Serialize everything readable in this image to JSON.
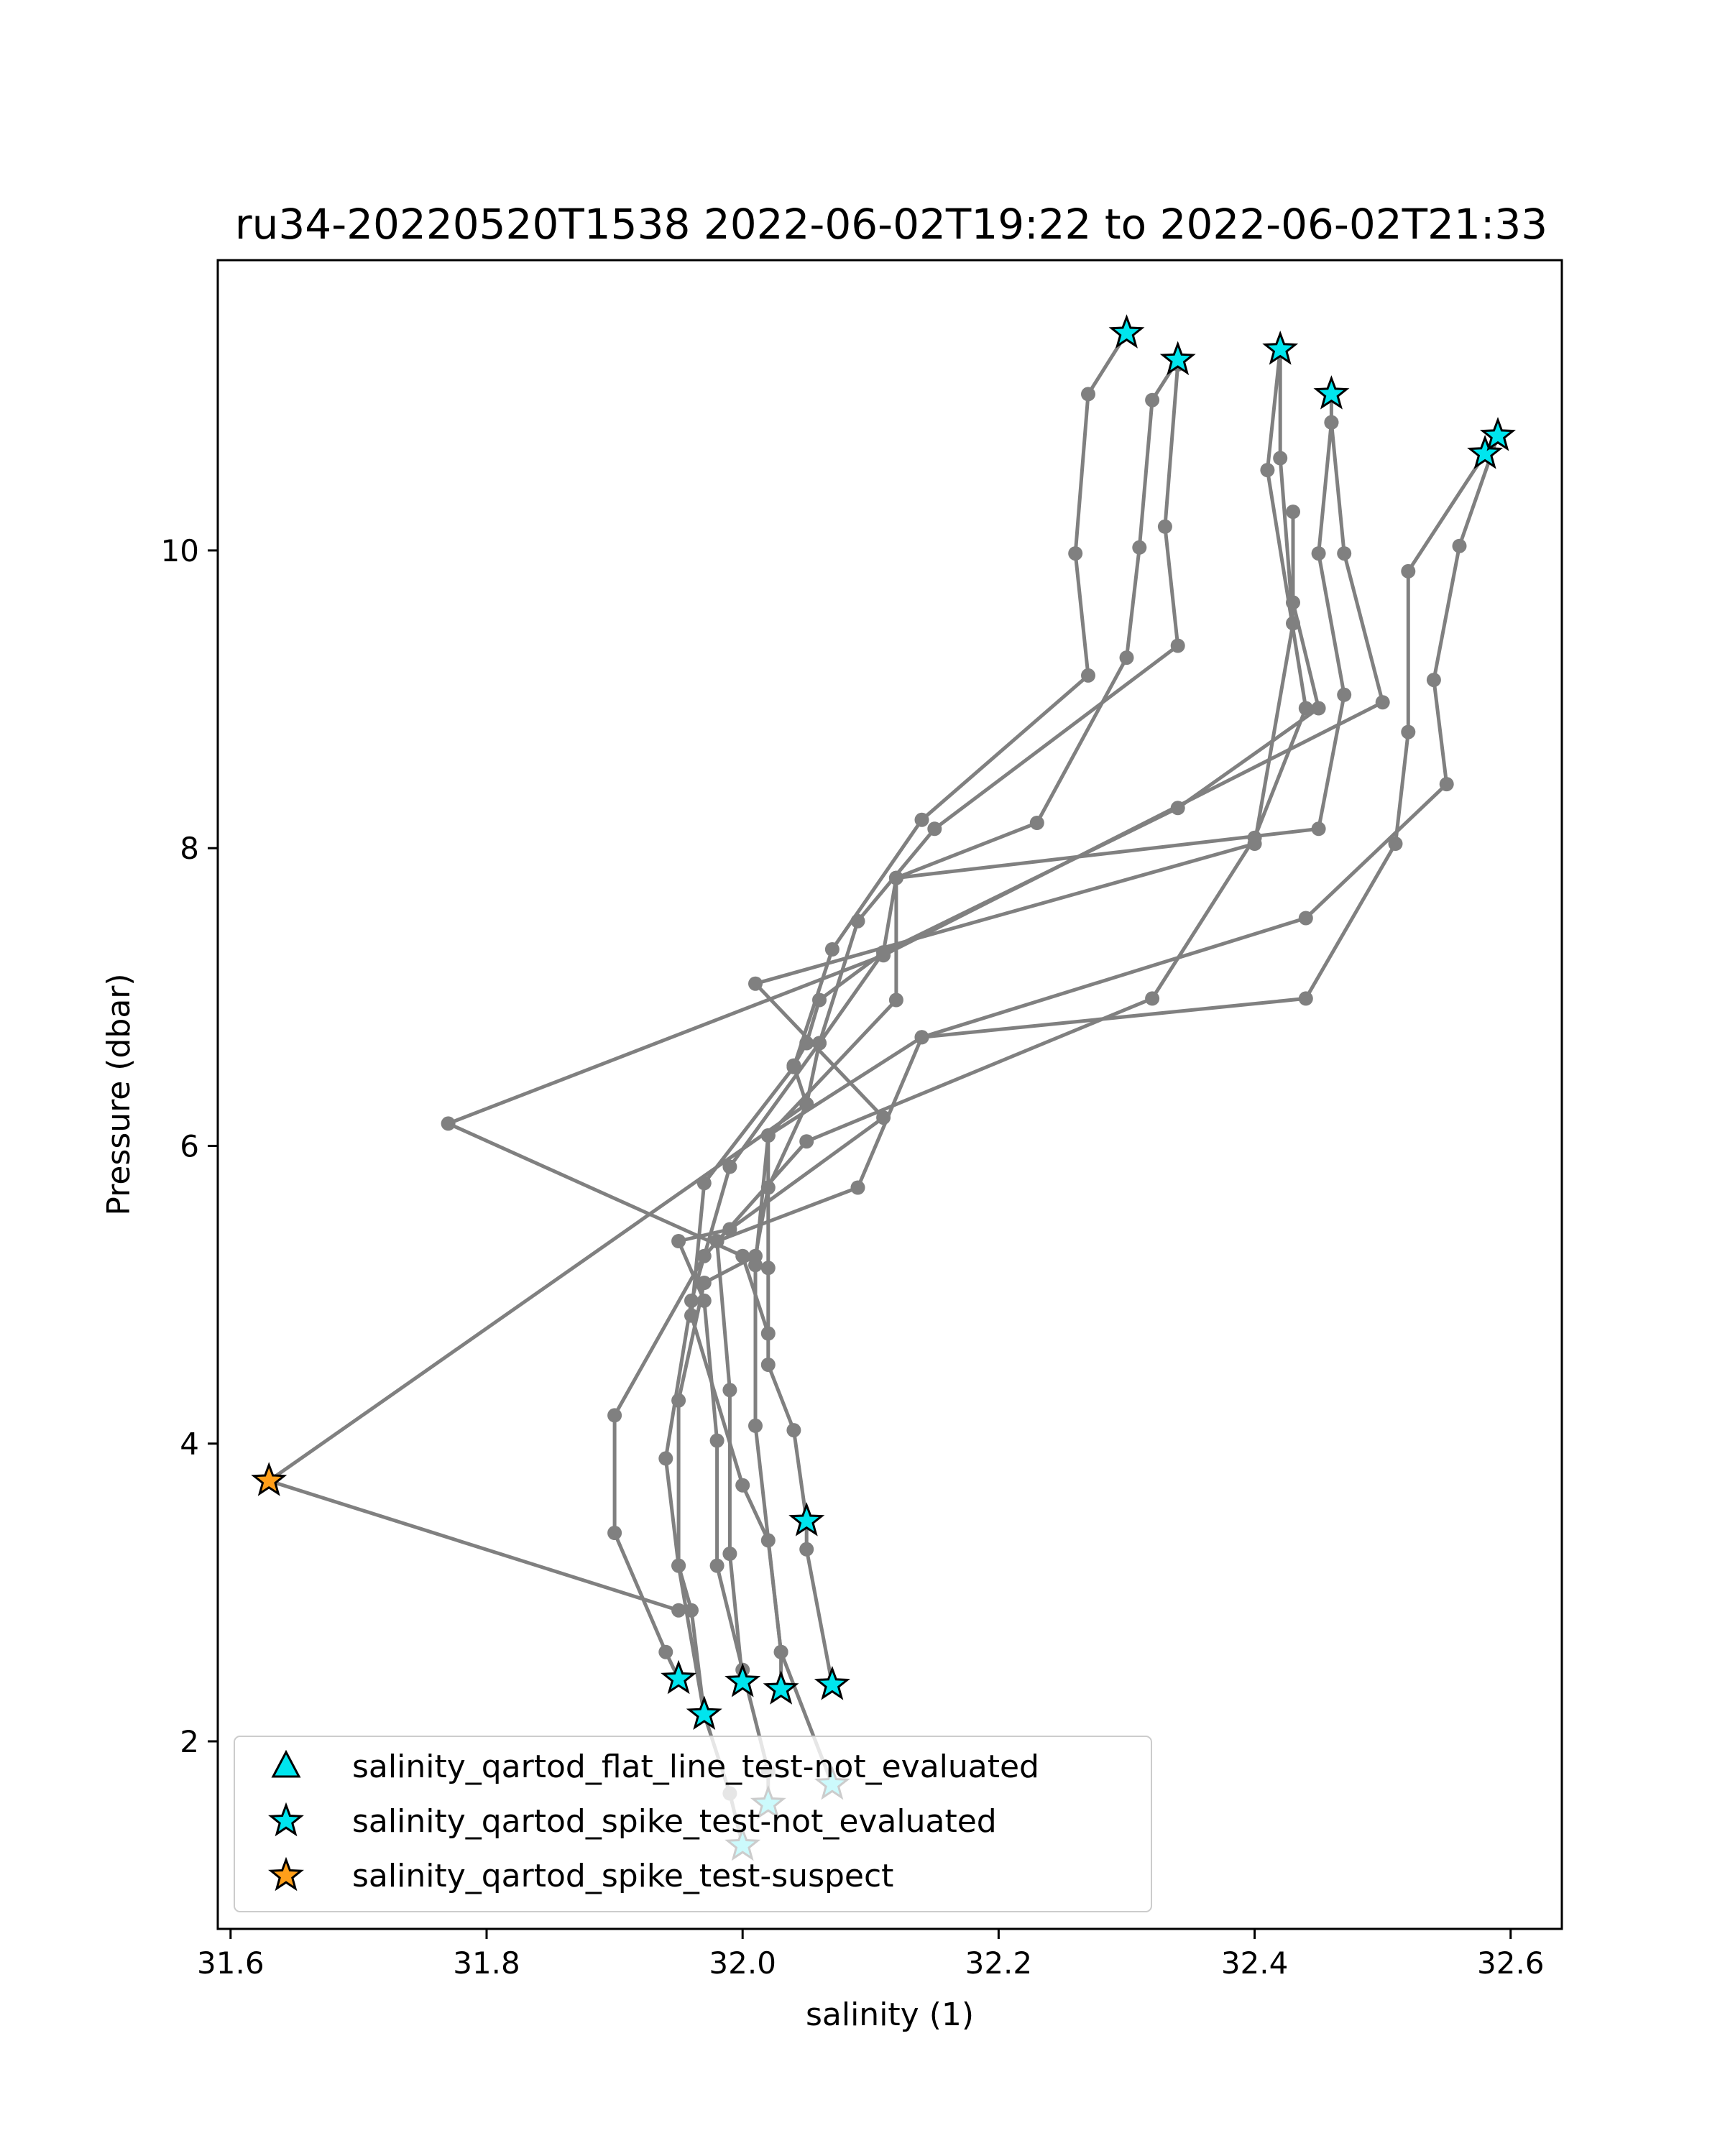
{
  "chart_data": {
    "type": "scatter",
    "title": "ru34-20220520T1538 2022-06-02T19:22 to 2022-06-02T21:33",
    "xlabel": "salinity (1)",
    "ylabel": "Pressure (dbar)",
    "xlim": [
      31.59,
      32.64
    ],
    "ylim": [
      11.95,
      0.74
    ],
    "y_inverted": true,
    "grid": false,
    "legend_position": "lower-left",
    "x_ticks": [
      31.6,
      31.8,
      32.0,
      32.2,
      32.4,
      32.6
    ],
    "x_tick_labels": [
      "31.6",
      "31.8",
      "32.0",
      "32.2",
      "32.4",
      "32.6"
    ],
    "y_ticks": [
      2,
      4,
      6,
      8,
      10
    ],
    "y_tick_labels": [
      "2",
      "4",
      "6",
      "8",
      "10"
    ],
    "colors": {
      "profile_line": "#808080",
      "not_evaluated": "#00e5ee",
      "suspect": "#ff9f1a",
      "marker_edge": "#000000"
    },
    "profiles": [
      [
        [
          32.0,
          1.3
        ],
        [
          31.99,
          1.65
        ],
        [
          31.97,
          2.18
        ],
        [
          31.96,
          2.88
        ],
        [
          31.95,
          3.18
        ],
        [
          31.95,
          4.29
        ],
        [
          31.97,
          5.08
        ],
        [
          32.01,
          5.26
        ],
        [
          32.02,
          5.72
        ],
        [
          32.05,
          6.28
        ],
        [
          32.06,
          6.69
        ],
        [
          32.11,
          7.3
        ],
        [
          32.12,
          7.8
        ],
        [
          32.23,
          8.17
        ],
        [
          32.3,
          9.28
        ],
        [
          32.31,
          10.02
        ],
        [
          32.32,
          11.01
        ],
        [
          32.34,
          11.28
        ]
      ],
      [
        [
          32.02,
          1.58
        ],
        [
          32.02,
          1.8
        ],
        [
          32.0,
          2.48
        ],
        [
          31.98,
          3.18
        ],
        [
          31.98,
          4.02
        ],
        [
          31.97,
          4.96
        ],
        [
          31.95,
          5.36
        ],
        [
          31.99,
          5.44
        ],
        [
          32.11,
          6.19
        ],
        [
          32.01,
          7.09
        ],
        [
          32.4,
          8.03
        ],
        [
          32.43,
          9.51
        ],
        [
          32.42,
          10.62
        ],
        [
          32.42,
          11.35
        ]
      ],
      [
        [
          32.07,
          1.71
        ],
        [
          32.03,
          2.6
        ],
        [
          32.02,
          3.35
        ],
        [
          32.0,
          3.72
        ],
        [
          31.96,
          4.86
        ],
        [
          31.97,
          5.75
        ],
        [
          32.04,
          6.53
        ],
        [
          32.07,
          7.32
        ],
        [
          32.14,
          8.19
        ],
        [
          32.27,
          9.16
        ],
        [
          32.26,
          9.98
        ],
        [
          32.27,
          11.05
        ],
        [
          32.3,
          11.46
        ]
      ],
      [
        [
          31.97,
          2.18
        ],
        [
          31.95,
          3.18
        ],
        [
          31.94,
          3.9
        ],
        [
          31.96,
          4.96
        ],
        [
          31.99,
          5.86
        ],
        [
          32.06,
          6.69
        ],
        [
          32.09,
          7.51
        ],
        [
          32.15,
          8.13
        ],
        [
          32.34,
          9.36
        ],
        [
          32.33,
          10.16
        ],
        [
          32.34,
          11.25
        ]
      ],
      [
        [
          31.95,
          2.42
        ],
        [
          31.94,
          2.6
        ],
        [
          31.9,
          3.4
        ],
        [
          31.9,
          4.19
        ],
        [
          31.97,
          5.26
        ],
        [
          32.05,
          6.03
        ],
        [
          32.32,
          6.99
        ],
        [
          32.4,
          8.07
        ],
        [
          32.44,
          8.94
        ],
        [
          32.41,
          10.54
        ],
        [
          32.42,
          11.35
        ]
      ],
      [
        [
          32.0,
          2.4
        ],
        [
          31.99,
          3.26
        ],
        [
          31.99,
          4.36
        ],
        [
          31.98,
          5.36
        ],
        [
          32.09,
          5.72
        ],
        [
          32.14,
          6.73
        ],
        [
          32.44,
          6.99
        ],
        [
          32.51,
          8.03
        ],
        [
          32.52,
          8.78
        ],
        [
          32.52,
          9.86
        ],
        [
          32.58,
          10.65
        ]
      ],
      [
        [
          32.03,
          2.35
        ],
        [
          32.03,
          2.6
        ],
        [
          32.01,
          4.12
        ],
        [
          32.01,
          5.2
        ],
        [
          32.02,
          6.07
        ],
        [
          32.14,
          6.73
        ],
        [
          32.44,
          7.53
        ],
        [
          32.55,
          8.43
        ],
        [
          32.54,
          9.13
        ],
        [
          32.56,
          10.03
        ],
        [
          32.59,
          10.77
        ]
      ],
      [
        [
          32.07,
          2.38
        ],
        [
          32.05,
          3.29
        ],
        [
          32.05,
          3.48
        ],
        [
          32.04,
          4.09
        ],
        [
          32.02,
          4.53
        ],
        [
          32.02,
          5.18
        ],
        [
          32.02,
          6.07
        ],
        [
          32.12,
          6.98
        ],
        [
          32.12,
          7.8
        ],
        [
          32.45,
          8.13
        ],
        [
          32.47,
          9.03
        ],
        [
          32.45,
          9.98
        ],
        [
          32.46,
          10.86
        ],
        [
          32.46,
          11.05
        ]
      ],
      [
        [
          31.95,
          2.88
        ],
        [
          31.63,
          3.75
        ],
        [
          32.05,
          6.28
        ],
        [
          32.04,
          6.54
        ],
        [
          32.05,
          6.69
        ],
        [
          32.06,
          6.98
        ],
        [
          32.11,
          7.3
        ],
        [
          32.34,
          8.27
        ],
        [
          32.45,
          8.94
        ],
        [
          32.43,
          9.65
        ],
        [
          32.43,
          10.26
        ]
      ],
      [
        [
          32.02,
          4.74
        ],
        [
          32.0,
          5.26
        ],
        [
          31.77,
          6.15
        ],
        [
          32.11,
          7.28
        ],
        [
          32.5,
          8.98
        ],
        [
          32.47,
          9.98
        ],
        [
          32.46,
          10.86
        ]
      ]
    ],
    "legend": [
      {
        "label": "salinity_qartod_flat_line_test-not_evaluated",
        "marker": "triangle",
        "color": "#00e5ee"
      },
      {
        "label": "salinity_qartod_spike_test-not_evaluated",
        "marker": "star",
        "color": "#00e5ee"
      },
      {
        "label": "salinity_qartod_spike_test-suspect",
        "marker": "star",
        "color": "#ff9f1a"
      }
    ],
    "flagged_points": [
      {
        "flag": "salinity_qartod_spike_test-not_evaluated",
        "points": [
          [
            32.0,
            1.3
          ],
          [
            32.02,
            1.58
          ],
          [
            32.07,
            1.71
          ],
          [
            31.97,
            2.18
          ],
          [
            32.0,
            2.4
          ],
          [
            32.03,
            2.35
          ],
          [
            32.07,
            2.38
          ],
          [
            31.95,
            2.42
          ],
          [
            32.05,
            3.48
          ],
          [
            32.58,
            10.65
          ],
          [
            32.59,
            10.77
          ],
          [
            32.46,
            11.05
          ],
          [
            32.34,
            11.28
          ],
          [
            32.42,
            11.35
          ],
          [
            32.3,
            11.46
          ]
        ]
      },
      {
        "flag": "salinity_qartod_spike_test-suspect",
        "points": [
          [
            31.63,
            3.75
          ]
        ]
      }
    ]
  }
}
